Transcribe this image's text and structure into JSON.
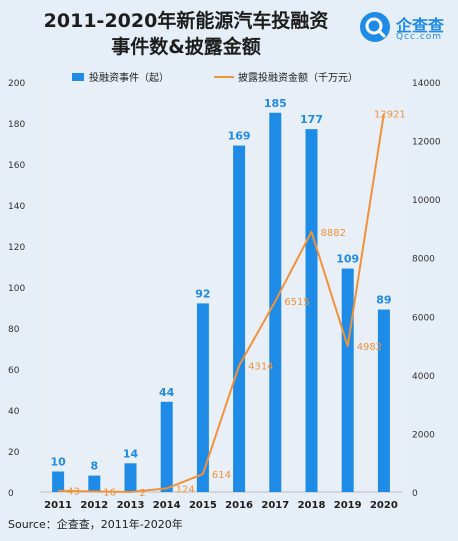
{
  "title_lines": [
    "2011-2020年新能源汽车投融资",
    "事件数&披露金额"
  ],
  "logo": {
    "name": "企查查",
    "domain": "Qcc.com",
    "icon": "qcc-logo-icon"
  },
  "source": "Source：企查查，2011年-2020年",
  "colors": {
    "bar": "#1e8be6",
    "line": "#f0923a",
    "bar_label": "#1e8be6",
    "line_label": "#f0923a"
  },
  "chart_data": {
    "type": "bar",
    "categories": [
      "2011",
      "2012",
      "2013",
      "2014",
      "2015",
      "2016",
      "2017",
      "2018",
      "2019",
      "2020"
    ],
    "series": [
      {
        "name": "投融资事件（起）",
        "type": "bar",
        "axis": "left",
        "values": [
          10,
          8,
          14,
          44,
          92,
          169,
          185,
          177,
          109,
          89
        ]
      },
      {
        "name": "披露投融资金额（千万元）",
        "type": "line",
        "axis": "right",
        "values": [
          43,
          16,
          2,
          124,
          614,
          4314,
          6515,
          8882,
          4982,
          12921
        ]
      }
    ],
    "ylim_left": [
      0,
      200
    ],
    "ylim_right": [
      0,
      14000
    ],
    "yticks_left": [
      "0",
      "20",
      "40",
      "60",
      "80",
      "100",
      "120",
      "140",
      "160",
      "180",
      "200"
    ],
    "yticks_right": [
      "0",
      "2000",
      "4000",
      "6000",
      "8000",
      "10000",
      "12000",
      "14000"
    ],
    "legend_position": "top"
  }
}
